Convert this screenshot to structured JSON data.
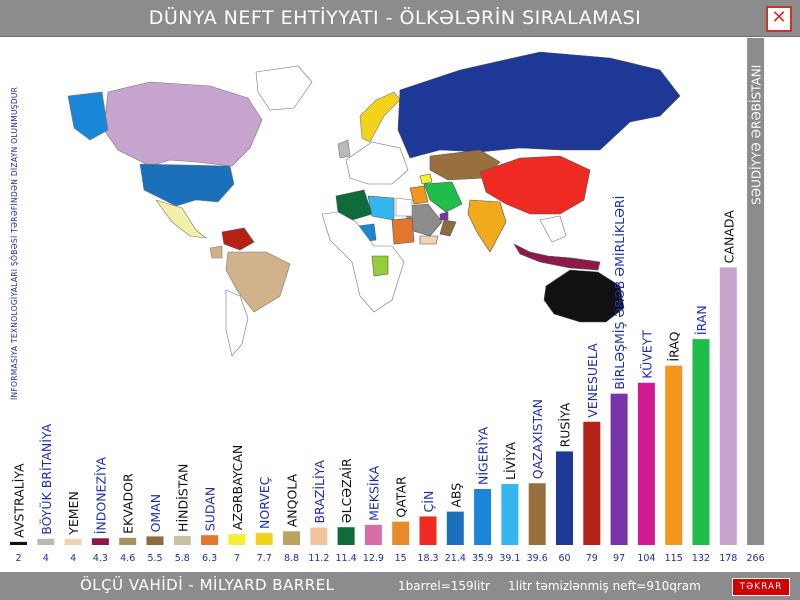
{
  "window": {
    "title": "DÜNYA  NEFT  EHTİYYATI - ÖLKƏLƏRİN SIRALAMASI",
    "close_label": "✕",
    "side_note": "İNFORMASİYA TEXNOLOGİYALARI ŞÖBƏSİ TƏRƏFİNDƏN DİZAYN OLUNMUŞDUR"
  },
  "footer": {
    "unit": "ÖLÇÜ VAHİDİ  -  MİLYARD BARREL",
    "barrel": "1barrel=159litr",
    "litre": "1litr təmizlənmiş neft=910qram",
    "repeat_button": "TƏKRAR"
  },
  "colors": {
    "bar_label_dark": "#111111",
    "bar_label_blue": "#1f2bb0",
    "bg": "#ffffff",
    "frame": "#8c8c8c"
  },
  "chart_data": {
    "type": "bar",
    "title": "DÜNYA  NEFT  EHTİYYATI - ÖLKƏLƏRİN SIRALAMASI",
    "ylabel": "ÖLÇÜ VAHİDİ  -  MİLYARD BARREL",
    "categories": [
      "AVSTRALİYA",
      "BÖYÜK BRİTANİYA",
      "YEMEN",
      "İNDONEZİYA",
      "EKVADOR",
      "OMAN",
      "HİNDİSTAN",
      "SUDAN",
      "AZƏRBAYCAN",
      "NORVEÇ",
      "ANQOLA",
      "BRAZİLİYA",
      "ƏLCƏZAİR",
      "MEKSİKA",
      "QATAR",
      "ÇİN",
      "ABŞ",
      "NİGERİYA",
      "LİVİYA",
      "QAZAXISTAN",
      "RUSİYA",
      "VENESUELA",
      "BİRLƏŞMİŞ ƏRƏB ƏMİRLİKLƏRİ",
      "KÜVEYT",
      "İRAQ",
      "İRAN",
      "CANADA",
      "SƏUDİYYƏ ƏRƏBİSTANI"
    ],
    "value_labels": [
      "2",
      "4",
      "4",
      "4.3",
      "4.6",
      "5.5",
      "5.8",
      "6.3",
      "7",
      "7.7",
      "8.8",
      "11.2",
      "11.4",
      "12.9",
      "15",
      "18.3",
      "21.4",
      "35.9",
      "39.1",
      "39.6",
      "60",
      "79",
      "97",
      "104",
      "115",
      "132",
      "178",
      "266"
    ],
    "values": [
      2,
      4,
      4,
      4.3,
      4.6,
      5.5,
      5.8,
      6.3,
      7,
      7.7,
      8.8,
      11.2,
      11.4,
      12.9,
      15,
      18.3,
      21.4,
      35.9,
      39.1,
      39.6,
      60,
      79,
      97,
      104,
      115,
      132,
      178,
      266
    ],
    "bar_colors": [
      "#111111",
      "#b9b9b9",
      "#f0d2b4",
      "#8b1a4b",
      "#a8905f",
      "#8e6b3c",
      "#c7c1a6",
      "#e3762f",
      "#f5ef35",
      "#f3d21c",
      "#b9a55d",
      "#f2c49e",
      "#0e6b3a",
      "#d76ea8",
      "#e68a2d",
      "#ef2a22",
      "#1b71b9",
      "#1a86d8",
      "#34b6ee",
      "#98703d",
      "#1d3896",
      "#b52216",
      "#7833a6",
      "#d11c91",
      "#f3961c",
      "#1fbd4a",
      "#c7a4cd",
      "#8c8c8c"
    ],
    "label_colors": [
      "dark",
      "blue",
      "dark",
      "blue",
      "dark",
      "blue",
      "dark",
      "blue",
      "dark",
      "blue",
      "dark",
      "blue",
      "dark",
      "blue",
      "dark",
      "blue",
      "dark",
      "blue",
      "dark",
      "blue",
      "dark",
      "blue",
      "blue",
      "blue",
      "dark",
      "blue",
      "dark",
      "white"
    ],
    "ylim": [
      0,
      266
    ]
  }
}
